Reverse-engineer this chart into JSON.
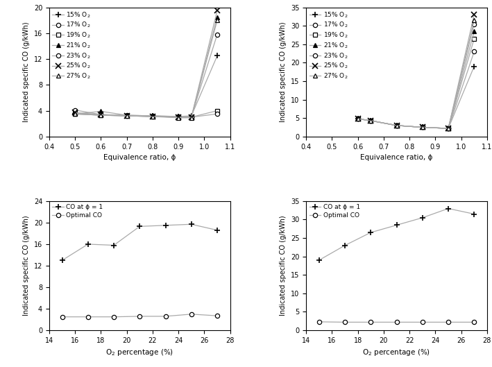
{
  "top_left": {
    "xlabel": "Equivalence ratio, ϕ",
    "ylabel": "Indicated specific CO (g/kWh)",
    "xlim": [
      0.4,
      1.1
    ],
    "ylim": [
      0,
      20
    ],
    "yticks": [
      0,
      4,
      8,
      12,
      16,
      20
    ],
    "xticks": [
      0.4,
      0.5,
      0.6,
      0.7,
      0.8,
      0.9,
      1.0,
      1.1
    ],
    "series": [
      {
        "label": "15% O$_2$",
        "marker": "+",
        "hollow": false,
        "x": [
          0.5,
          0.6,
          0.7,
          0.8,
          0.9,
          0.95,
          1.05
        ],
        "y": [
          3.5,
          3.3,
          3.2,
          3.2,
          3.1,
          3.2,
          12.5
        ]
      },
      {
        "label": "17% O$_2$",
        "marker": "o",
        "hollow": true,
        "x": [
          0.5,
          0.6,
          0.7,
          0.8,
          0.9,
          0.95,
          1.05
        ],
        "y": [
          3.6,
          3.4,
          3.3,
          3.2,
          3.1,
          3.1,
          15.8
        ]
      },
      {
        "label": "19% O$_2$",
        "marker": "s",
        "hollow": true,
        "x": [
          0.5,
          0.6,
          0.7,
          0.8,
          0.9,
          0.95,
          1.05
        ],
        "y": [
          3.5,
          3.3,
          3.2,
          3.1,
          3.0,
          3.0,
          4.0
        ]
      },
      {
        "label": "21% O$_2$",
        "marker": "^",
        "hollow": false,
        "x": [
          0.5,
          0.6,
          0.7,
          0.8,
          0.9,
          0.95,
          1.05
        ],
        "y": [
          3.5,
          3.9,
          3.3,
          3.2,
          3.0,
          3.0,
          18.5
        ]
      },
      {
        "label": "23% O$_2$",
        "marker": "o",
        "hollow": true,
        "x": [
          0.5,
          0.6,
          0.7,
          0.8,
          0.9,
          0.95,
          1.05
        ],
        "y": [
          4.1,
          3.4,
          3.2,
          3.1,
          3.0,
          3.0,
          3.5
        ]
      },
      {
        "label": "25% O$_2$",
        "marker": "x",
        "hollow": false,
        "x": [
          0.5,
          0.6,
          0.7,
          0.8,
          0.9,
          0.95,
          1.05
        ],
        "y": [
          3.7,
          3.4,
          3.2,
          3.1,
          3.0,
          3.0,
          19.5
        ]
      },
      {
        "label": "27% O$_2$",
        "marker": "^",
        "hollow": true,
        "x": [
          0.5,
          0.6,
          0.7,
          0.8,
          0.9,
          0.95,
          1.05
        ],
        "y": [
          3.5,
          3.3,
          3.2,
          3.1,
          2.9,
          2.9,
          18.0
        ]
      }
    ]
  },
  "top_right": {
    "xlabel": "Equivalence ratio, ϕ",
    "ylabel": "Indicated specific CO (g/kWh)",
    "xlim": [
      0.4,
      1.1
    ],
    "ylim": [
      0,
      35
    ],
    "yticks": [
      0,
      5,
      10,
      15,
      20,
      25,
      30,
      35
    ],
    "xticks": [
      0.4,
      0.5,
      0.6,
      0.7,
      0.8,
      0.9,
      1.0,
      1.1
    ],
    "series": [
      {
        "label": "15% O$_2$",
        "marker": "+",
        "hollow": false,
        "x": [
          0.6,
          0.65,
          0.75,
          0.85,
          0.95,
          1.05
        ],
        "y": [
          4.8,
          4.3,
          3.0,
          2.5,
          2.2,
          19.0
        ]
      },
      {
        "label": "17% O$_2$",
        "marker": "o",
        "hollow": true,
        "x": [
          0.6,
          0.65,
          0.75,
          0.85,
          0.95,
          1.05
        ],
        "y": [
          4.8,
          4.3,
          3.0,
          2.5,
          2.2,
          23.0
        ]
      },
      {
        "label": "19% O$_2$",
        "marker": "s",
        "hollow": true,
        "x": [
          0.6,
          0.65,
          0.75,
          0.85,
          0.95,
          1.05
        ],
        "y": [
          4.8,
          4.3,
          3.0,
          2.5,
          2.2,
          26.5
        ]
      },
      {
        "label": "21% O$_2$",
        "marker": "^",
        "hollow": false,
        "x": [
          0.6,
          0.65,
          0.75,
          0.85,
          0.95,
          1.05
        ],
        "y": [
          4.8,
          4.3,
          3.0,
          2.5,
          2.2,
          28.5
        ]
      },
      {
        "label": "23% O$_2$",
        "marker": "o",
        "hollow": true,
        "x": [
          0.6,
          0.65,
          0.75,
          0.85,
          0.95,
          1.05
        ],
        "y": [
          4.8,
          4.3,
          3.0,
          2.5,
          2.2,
          30.5
        ]
      },
      {
        "label": "25% O$_2$",
        "marker": "x",
        "hollow": false,
        "x": [
          0.6,
          0.65,
          0.75,
          0.85,
          0.95,
          1.05
        ],
        "y": [
          4.8,
          4.3,
          3.0,
          2.5,
          2.2,
          33.0
        ]
      },
      {
        "label": "27% O$_2$",
        "marker": "^",
        "hollow": true,
        "x": [
          0.6,
          0.65,
          0.75,
          0.85,
          0.95,
          1.05
        ],
        "y": [
          4.8,
          4.3,
          3.0,
          2.5,
          2.2,
          31.5
        ]
      }
    ]
  },
  "bottom_left": {
    "xlabel": "O$_2$ percentage (%)",
    "ylabel": "Indicated specific CO (g/kWh)",
    "xlim": [
      14,
      28
    ],
    "ylim": [
      0,
      24
    ],
    "yticks": [
      0,
      4,
      8,
      12,
      16,
      20,
      24
    ],
    "xticks": [
      14,
      16,
      18,
      20,
      22,
      24,
      26,
      28
    ],
    "series": [
      {
        "label": "CO at ϕ = 1",
        "marker": "+",
        "hollow": false,
        "x": [
          15,
          17,
          19,
          21,
          23,
          25,
          27
        ],
        "y": [
          13.0,
          16.0,
          15.8,
          19.3,
          19.5,
          19.7,
          18.6
        ]
      },
      {
        "label": "Optimal CO",
        "marker": "o",
        "hollow": true,
        "x": [
          15,
          17,
          19,
          21,
          23,
          25,
          27
        ],
        "y": [
          2.5,
          2.5,
          2.5,
          2.6,
          2.6,
          3.0,
          2.7
        ]
      }
    ]
  },
  "bottom_right": {
    "xlabel": "O$_2$ percentage (%)",
    "ylabel": "Indicated specific CO (g/kWh)",
    "xlim": [
      14,
      28
    ],
    "ylim": [
      0,
      35
    ],
    "yticks": [
      0,
      5,
      10,
      15,
      20,
      25,
      30,
      35
    ],
    "xticks": [
      14,
      16,
      18,
      20,
      22,
      24,
      26,
      28
    ],
    "series": [
      {
        "label": "CO at ϕ = 1",
        "marker": "+",
        "hollow": false,
        "x": [
          15,
          17,
          19,
          21,
          23,
          25,
          27
        ],
        "y": [
          19.0,
          23.0,
          26.5,
          28.5,
          30.5,
          33.0,
          31.5
        ]
      },
      {
        "label": "Optimal CO",
        "marker": "o",
        "hollow": true,
        "x": [
          15,
          17,
          19,
          21,
          23,
          25,
          27
        ],
        "y": [
          2.3,
          2.2,
          2.2,
          2.2,
          2.2,
          2.2,
          2.2
        ]
      }
    ]
  },
  "line_color": "#aaaaaa",
  "marker_color": "#000000"
}
